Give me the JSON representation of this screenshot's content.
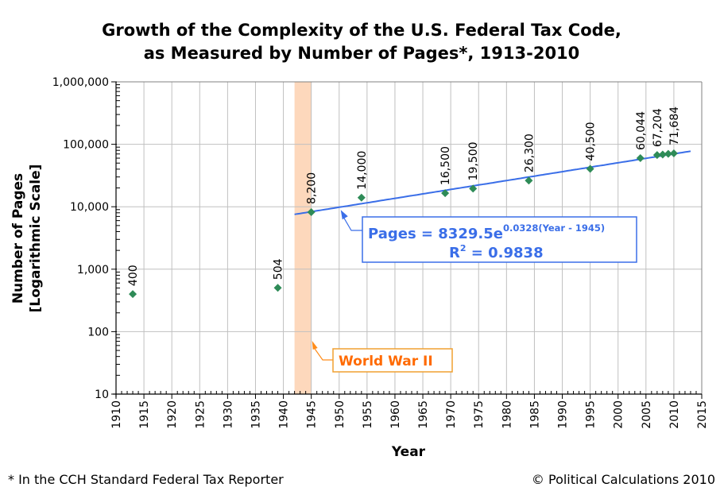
{
  "chart_data": {
    "type": "scatter",
    "title_lines": [
      "Growth of the Complexity of the U.S. Federal Tax Code,",
      "as Measured by Number of Pages*, 1913-2010"
    ],
    "xlabel": "Year",
    "ylabel_lines": [
      "Number of Pages",
      "[Logarithmic Scale]"
    ],
    "yscale": "log",
    "xlim": [
      1910,
      2015
    ],
    "ylim": [
      10,
      1000000
    ],
    "x_ticks": [
      1910,
      1915,
      1920,
      1925,
      1930,
      1935,
      1940,
      1945,
      1950,
      1955,
      1960,
      1965,
      1970,
      1975,
      1980,
      1985,
      1990,
      1995,
      2000,
      2005,
      2010,
      2015
    ],
    "y_ticks": [
      10,
      100,
      1000,
      10000,
      100000,
      1000000
    ],
    "y_tick_labels": [
      "10",
      "100",
      "1,000",
      "10,000",
      "100,000",
      "1,000,000"
    ],
    "grid": true,
    "series": [
      {
        "name": "Pages",
        "color": "#2e8b57",
        "marker": "diamond",
        "points": [
          {
            "x": 1913,
            "y": 400,
            "label": "400"
          },
          {
            "x": 1939,
            "y": 504,
            "label": "504"
          },
          {
            "x": 1945,
            "y": 8200,
            "label": "8,200"
          },
          {
            "x": 1954,
            "y": 14000,
            "label": "14,000"
          },
          {
            "x": 1969,
            "y": 16500,
            "label": "16,500"
          },
          {
            "x": 1974,
            "y": 19500,
            "label": "19,500"
          },
          {
            "x": 1984,
            "y": 26300,
            "label": "26,300"
          },
          {
            "x": 1995,
            "y": 40500,
            "label": "40,500"
          },
          {
            "x": 2004,
            "y": 60044,
            "label": "60,044"
          },
          {
            "x": 2007,
            "y": 67204,
            "label": "67,204"
          },
          {
            "x": 2008,
            "y": 68500,
            "label": ""
          },
          {
            "x": 2009,
            "y": 70320,
            "label": ""
          },
          {
            "x": 2010,
            "y": 71684,
            "label": "71,684"
          }
        ]
      }
    ],
    "trendline": {
      "type": "exponential",
      "a": 8329.5,
      "b": 0.0328,
      "x0": 1945,
      "x_range": [
        1942,
        2013
      ],
      "color": "#3a6ee8",
      "equation_main": "Pages = 8329.5e",
      "equation_exponent": "0.0328(Year - 1945)",
      "r2_prefix": "R",
      "r2_sup": "2",
      "r2_value": " = 0.9838",
      "annotation_anchor": {
        "x": 1950,
        "y": 10000
      }
    },
    "shaded_region": {
      "label": "World War II",
      "x_range": [
        1942,
        1945
      ],
      "color": "#fdd8bc",
      "label_color": "#ff6a00"
    },
    "footnote": "* In the CCH Standard Federal Tax Reporter",
    "credit": "© Political Calculations 2010"
  }
}
